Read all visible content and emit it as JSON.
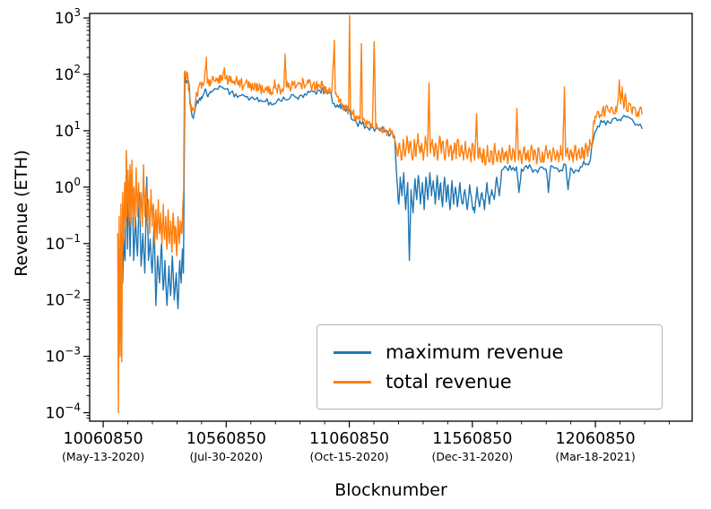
{
  "chart_data": {
    "type": "line",
    "title": "",
    "xlabel": "Blocknumber",
    "ylabel": "Revenue (ETH)",
    "background": "#ffffff",
    "x_axis": {
      "lim": [
        10006000,
        12454000
      ],
      "minor_tick_step": 100000,
      "major_ticks": [
        {
          "value": 10060850,
          "label": "10060850",
          "date": "(May-13-2020)"
        },
        {
          "value": 10560850,
          "label": "10560850",
          "date": "(Jul-30-2020)"
        },
        {
          "value": 11060850,
          "label": "11060850",
          "date": "(Oct-15-2020)"
        },
        {
          "value": 11560850,
          "label": "11560850",
          "date": "(Dec-31-2020)"
        },
        {
          "value": 12060850,
          "label": "12060850",
          "date": "(Mar-18-2021)"
        }
      ]
    },
    "y_axis": {
      "scale": "log",
      "lim_exp": [
        -4.15,
        3.08
      ],
      "major_tick_exponents": [
        -4,
        -3,
        -2,
        -1,
        0,
        1,
        2,
        3
      ]
    },
    "legend": {
      "position": "lower right inset"
    },
    "seed": 1337,
    "series": [
      {
        "name": "maximum revenue",
        "color": "#1f77b4",
        "jitter_dex": 0.07,
        "points_per_segment": 3,
        "points": [
          10132000,
          0.004,
          10136000,
          0.15,
          10140000,
          0.02,
          10145000,
          0.12,
          10150000,
          0.05,
          10155000,
          3.5,
          10160000,
          0.08,
          10165000,
          1.2,
          10170000,
          0.06,
          10178000,
          2.0,
          10185000,
          0.05,
          10192000,
          0.3,
          10200000,
          0.06,
          10208000,
          0.8,
          10215000,
          0.04,
          10222000,
          0.15,
          10230000,
          0.03,
          10238000,
          1.5,
          10245000,
          0.05,
          10252000,
          0.12,
          10260000,
          0.03,
          10268000,
          0.25,
          10275000,
          0.008,
          10282000,
          0.06,
          10290000,
          0.02,
          10298000,
          0.1,
          10305000,
          0.015,
          10312000,
          0.05,
          10320000,
          0.008,
          10328000,
          0.04,
          10335000,
          0.012,
          10342000,
          0.06,
          10350000,
          0.01,
          10358000,
          0.03,
          10365000,
          0.007,
          10372000,
          0.05,
          10378000,
          0.02,
          10383000,
          0.08,
          10387000,
          0.03,
          10390000,
          2,
          10393000,
          90,
          10400000,
          70,
          10408000,
          75,
          10415000,
          30,
          10422000,
          18,
          10430000,
          20,
          10438000,
          28,
          10450000,
          35,
          10460000,
          40,
          10470000,
          45,
          10480000,
          50,
          10490000,
          45,
          10500000,
          48,
          10520000,
          55,
          10540000,
          60,
          10560850,
          55,
          10580000,
          48,
          10600000,
          45,
          10620000,
          42,
          10640000,
          40,
          10660000,
          38,
          10680000,
          36,
          10700000,
          35,
          10720000,
          33,
          10740000,
          32,
          10760000,
          30,
          10780000,
          34,
          10800000,
          36,
          10820000,
          38,
          10840000,
          40,
          10860000,
          42,
          10880000,
          45,
          10900000,
          48,
          10920000,
          50,
          10940000,
          52,
          10950000,
          55,
          10960000,
          50,
          10980000,
          48,
          11000000,
          30,
          11010000,
          28,
          11020000,
          27,
          11030000,
          26,
          11040000,
          25,
          11050000,
          25,
          11060000,
          24,
          11070000,
          16,
          11090000,
          14,
          11110000,
          13,
          11130000,
          12,
          11150000,
          12,
          11170000,
          11,
          11190000,
          10,
          11210000,
          10,
          11230000,
          9,
          11245000,
          8,
          11255000,
          1.2,
          11262000,
          0.5,
          11268000,
          1.5,
          11275000,
          0.7,
          11282000,
          1.8,
          11290000,
          0.4,
          11298000,
          1.2,
          11305000,
          0.05,
          11312000,
          0.9,
          11320000,
          0.35,
          11328000,
          1.4,
          11335000,
          0.6,
          11342000,
          1.6,
          11350000,
          0.5,
          11358000,
          1.2,
          11365000,
          0.4,
          11372000,
          1.5,
          11380000,
          0.6,
          11388000,
          1.8,
          11395000,
          0.7,
          11402000,
          1.3,
          11410000,
          0.5,
          11418000,
          1.6,
          11425000,
          0.6,
          11432000,
          1.2,
          11440000,
          0.45,
          11448000,
          1.5,
          11455000,
          0.55,
          11462000,
          1.1,
          11470000,
          0.4,
          11478000,
          1.3,
          11485000,
          0.5,
          11492000,
          1.0,
          11500000,
          0.45,
          11510000,
          1.2,
          11520000,
          0.5,
          11530000,
          0.9,
          11540000,
          0.4,
          11550000,
          1.1,
          11560000,
          0.5,
          11570000,
          0.35,
          11580000,
          1.0,
          11590000,
          0.45,
          11600000,
          0.8,
          11610000,
          0.4,
          11620000,
          1.2,
          11630000,
          0.5,
          11640000,
          0.9,
          11650000,
          0.6,
          11660000,
          1.5,
          11670000,
          0.7,
          11680000,
          2.0,
          11700000,
          2.2,
          11720000,
          2.0,
          11740000,
          2.3,
          11750000,
          0.8,
          11760000,
          2.1,
          11780000,
          2.4,
          11800000,
          2.2,
          11820000,
          2.0,
          11840000,
          2.3,
          11860000,
          2.1,
          11870000,
          0.8,
          11880000,
          2.4,
          11900000,
          2.2,
          11920000,
          2.0,
          11940000,
          2.5,
          11950000,
          0.9,
          11960000,
          2.2,
          11980000,
          2.0,
          12000000,
          2.3,
          12020000,
          2.5,
          12040000,
          3.0,
          12055000,
          8,
          12070000,
          12,
          12090000,
          14,
          12110000,
          15,
          12130000,
          16,
          12150000,
          15,
          12170000,
          17,
          12190000,
          18,
          12210000,
          16,
          12230000,
          13,
          12250000,
          11
        ]
      },
      {
        "name": "total revenue",
        "color": "#ff7f0e",
        "jitter_dex": 0.1,
        "points_per_segment": 3,
        "points": [
          10120000,
          0.15,
          10123000,
          0.0001,
          10126000,
          0.3,
          10130000,
          0.001,
          10133000,
          0.5,
          10136000,
          0.0008,
          10140000,
          0.8,
          10144000,
          0.1,
          10148000,
          1.2,
          10152000,
          0.2,
          10155000,
          4.5,
          10158000,
          0.3,
          10162000,
          2.0,
          10166000,
          0.25,
          10170000,
          2.5,
          10174000,
          0.2,
          10178000,
          3.0,
          10182000,
          0.3,
          10186000,
          1.0,
          10190000,
          0.2,
          10195000,
          2.2,
          10200000,
          0.3,
          10205000,
          1.2,
          10210000,
          0.25,
          10215000,
          0.8,
          10220000,
          0.2,
          10225000,
          2.5,
          10230000,
          0.3,
          10235000,
          1.0,
          10240000,
          0.2,
          10245000,
          0.6,
          10250000,
          0.15,
          10255000,
          0.9,
          10260000,
          0.2,
          10265000,
          0.5,
          10270000,
          0.1,
          10275000,
          0.4,
          10280000,
          0.12,
          10285000,
          0.6,
          10290000,
          0.15,
          10295000,
          0.35,
          10300000,
          0.1,
          10305000,
          0.5,
          10310000,
          0.12,
          10315000,
          0.3,
          10320000,
          0.08,
          10325000,
          0.4,
          10330000,
          0.1,
          10335000,
          0.25,
          10340000,
          0.07,
          10345000,
          0.35,
          10350000,
          0.1,
          10355000,
          0.2,
          10360000,
          0.06,
          10365000,
          0.3,
          10370000,
          0.1,
          10375000,
          0.25,
          10380000,
          0.15,
          10384000,
          0.4,
          10388000,
          1.0,
          10391000,
          110,
          10395000,
          95,
          10400000,
          85,
          10405000,
          90,
          10410000,
          50,
          10415000,
          30,
          10420000,
          26,
          10428000,
          24,
          10435000,
          30,
          10442000,
          45,
          10450000,
          60,
          10458000,
          70,
          10465000,
          65,
          10472000,
          75,
          10480000,
          200,
          10484000,
          70,
          10490000,
          65,
          10495000,
          80,
          10500000,
          70,
          10508000,
          90,
          10515000,
          75,
          10522000,
          85,
          10530000,
          70,
          10538000,
          95,
          10545000,
          80,
          10552000,
          120,
          10556000,
          85,
          10560850,
          85,
          10570000,
          75,
          10580000,
          90,
          10590000,
          70,
          10600000,
          80,
          10610000,
          65,
          10620000,
          75,
          10630000,
          60,
          10640000,
          70,
          10650000,
          58,
          10660000,
          68,
          10670000,
          55,
          10680000,
          65,
          10690000,
          52,
          10700000,
          60,
          10710000,
          50,
          10720000,
          58,
          10730000,
          48,
          10740000,
          55,
          10750000,
          45,
          10758000,
          80,
          10765000,
          55,
          10775000,
          65,
          10785000,
          52,
          10795000,
          60,
          10800000,
          230,
          10805000,
          60,
          10815000,
          70,
          10825000,
          58,
          10835000,
          68,
          10845000,
          60,
          10855000,
          72,
          10865000,
          62,
          10875000,
          75,
          10885000,
          65,
          10895000,
          70,
          10905000,
          60,
          10915000,
          68,
          10925000,
          58,
          10935000,
          66,
          10945000,
          56,
          10952000,
          64,
          10958000,
          55,
          10965000,
          60,
          10972000,
          52,
          10980000,
          58,
          10990000,
          48,
          11000000,
          400,
          11004000,
          45,
          11012000,
          40,
          11022000,
          35,
          11032000,
          30,
          11042000,
          28,
          11052000,
          26,
          11058000,
          24,
          11062000,
          1100,
          11066000,
          22,
          11075000,
          20,
          11085000,
          18,
          11095000,
          17,
          11105000,
          16,
          11110000,
          350,
          11114000,
          15,
          11125000,
          14,
          11135000,
          13,
          11145000,
          12,
          11155000,
          12,
          11162000,
          380,
          11168000,
          11,
          11180000,
          11,
          11192000,
          10,
          11205000,
          10,
          11218000,
          9,
          11230000,
          9,
          11242000,
          8.5,
          11252000,
          5,
          11258000,
          3.5,
          11265000,
          6,
          11272000,
          3,
          11280000,
          7,
          11288000,
          3.5,
          11295000,
          8,
          11302000,
          4,
          11310000,
          6.5,
          11318000,
          3,
          11325000,
          7,
          11332000,
          3.5,
          11340000,
          9,
          11348000,
          4,
          11355000,
          6,
          11362000,
          3,
          11370000,
          8,
          11378000,
          3.5,
          11385000,
          70,
          11390000,
          4,
          11398000,
          7,
          11405000,
          3.5,
          11412000,
          6,
          11420000,
          3,
          11428000,
          8,
          11435000,
          4,
          11442000,
          6.5,
          11450000,
          3,
          11458000,
          7,
          11465000,
          3.5,
          11472000,
          5.5,
          11480000,
          3,
          11488000,
          6,
          11495000,
          3.2,
          11502000,
          7,
          11510000,
          3.5,
          11518000,
          5.5,
          11525000,
          3,
          11532000,
          6.5,
          11540000,
          3.2,
          11548000,
          5,
          11555000,
          2.8,
          11562000,
          6,
          11570000,
          3,
          11578000,
          20,
          11584000,
          3.2,
          11592000,
          5,
          11600000,
          2.8,
          11608000,
          4.5,
          11615000,
          2.5,
          11622000,
          5.5,
          11630000,
          2.8,
          11638000,
          4.2,
          11645000,
          2.5,
          11652000,
          6,
          11660000,
          3,
          11668000,
          4.5,
          11675000,
          2.8,
          11682000,
          5,
          11690000,
          3,
          11698000,
          4.2,
          11705000,
          2.6,
          11712000,
          5.5,
          11720000,
          3,
          11728000,
          4.5,
          11735000,
          2.8,
          11742000,
          25,
          11748000,
          3,
          11755000,
          4.5,
          11762000,
          2.6,
          11770000,
          5,
          11778000,
          3,
          11785000,
          4.2,
          11792000,
          2.8,
          11800000,
          5.5,
          11808000,
          3,
          11815000,
          4.5,
          11822000,
          2.6,
          11830000,
          5,
          11838000,
          3,
          11845000,
          4.2,
          11852000,
          2.8,
          11860000,
          5.5,
          11868000,
          3.2,
          11875000,
          4.5,
          11882000,
          2.8,
          11890000,
          5,
          11898000,
          3,
          11905000,
          4.5,
          11912000,
          2.8,
          11920000,
          5.5,
          11928000,
          3,
          11935000,
          60,
          11940000,
          3.5,
          11948000,
          5,
          11955000,
          3,
          11962000,
          4.5,
          11970000,
          2.8,
          11978000,
          5.5,
          11985000,
          3,
          11992000,
          4.5,
          12000000,
          3.2,
          12008000,
          5,
          12015000,
          3,
          12022000,
          6,
          12030000,
          3.5,
          12038000,
          7,
          12045000,
          5,
          12052000,
          12,
          12060000,
          18,
          12070000,
          22,
          12080000,
          19,
          12090000,
          24,
          12100000,
          20,
          12110000,
          26,
          12120000,
          21,
          12130000,
          24,
          12140000,
          20,
          12150000,
          28,
          12158000,
          80,
          12163000,
          30,
          12170000,
          60,
          12176000,
          25,
          12182000,
          45,
          12190000,
          22,
          12200000,
          30,
          12210000,
          20,
          12220000,
          26,
          12230000,
          18,
          12240000,
          24,
          12250000,
          20
        ]
      }
    ]
  }
}
